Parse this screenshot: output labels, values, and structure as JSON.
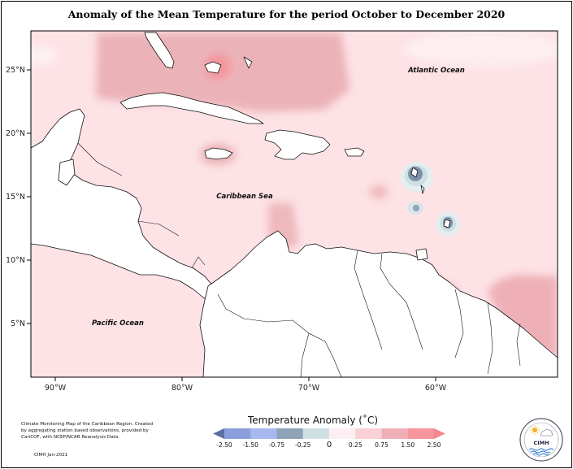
{
  "title": "Anomaly of the Mean Temperature for the period October to December 2020",
  "map": {
    "lat_ticks": [
      "25°N",
      "20°N",
      "15°N",
      "10°N",
      "5°N"
    ],
    "lon_ticks": [
      "90°W",
      "80°W",
      "70°W",
      "60°W"
    ],
    "labels": {
      "atlantic": "Atlantic Ocean",
      "caribbean": "Caribbean Sea",
      "pacific": "Pacific Ocean"
    }
  },
  "legend": {
    "title": "Temperature Anomaly (˚C)",
    "tick_labels": [
      "-2.50",
      "-1.50",
      "-0.75",
      "-0.25",
      "0",
      "0.25",
      "0.75",
      "1.50",
      "2.50"
    ],
    "colors": [
      "#5d6fa3",
      "#8b9fdc",
      "#a8b8ef",
      "#8ea3b8",
      "#cfe0e4",
      "#fdeff1",
      "#fad0d6",
      "#eeb0b6",
      "#f6969c",
      "#f4868e"
    ]
  },
  "credit": {
    "text": "Climate Monitoring Map of the Caribbean Region. Created by aggregating station based observations, provided by CariCOF, with NCEP/NCAR Reanalysis Data.",
    "date": "CIMH Jan-2021"
  },
  "logo": {
    "label": "CIMH"
  }
}
